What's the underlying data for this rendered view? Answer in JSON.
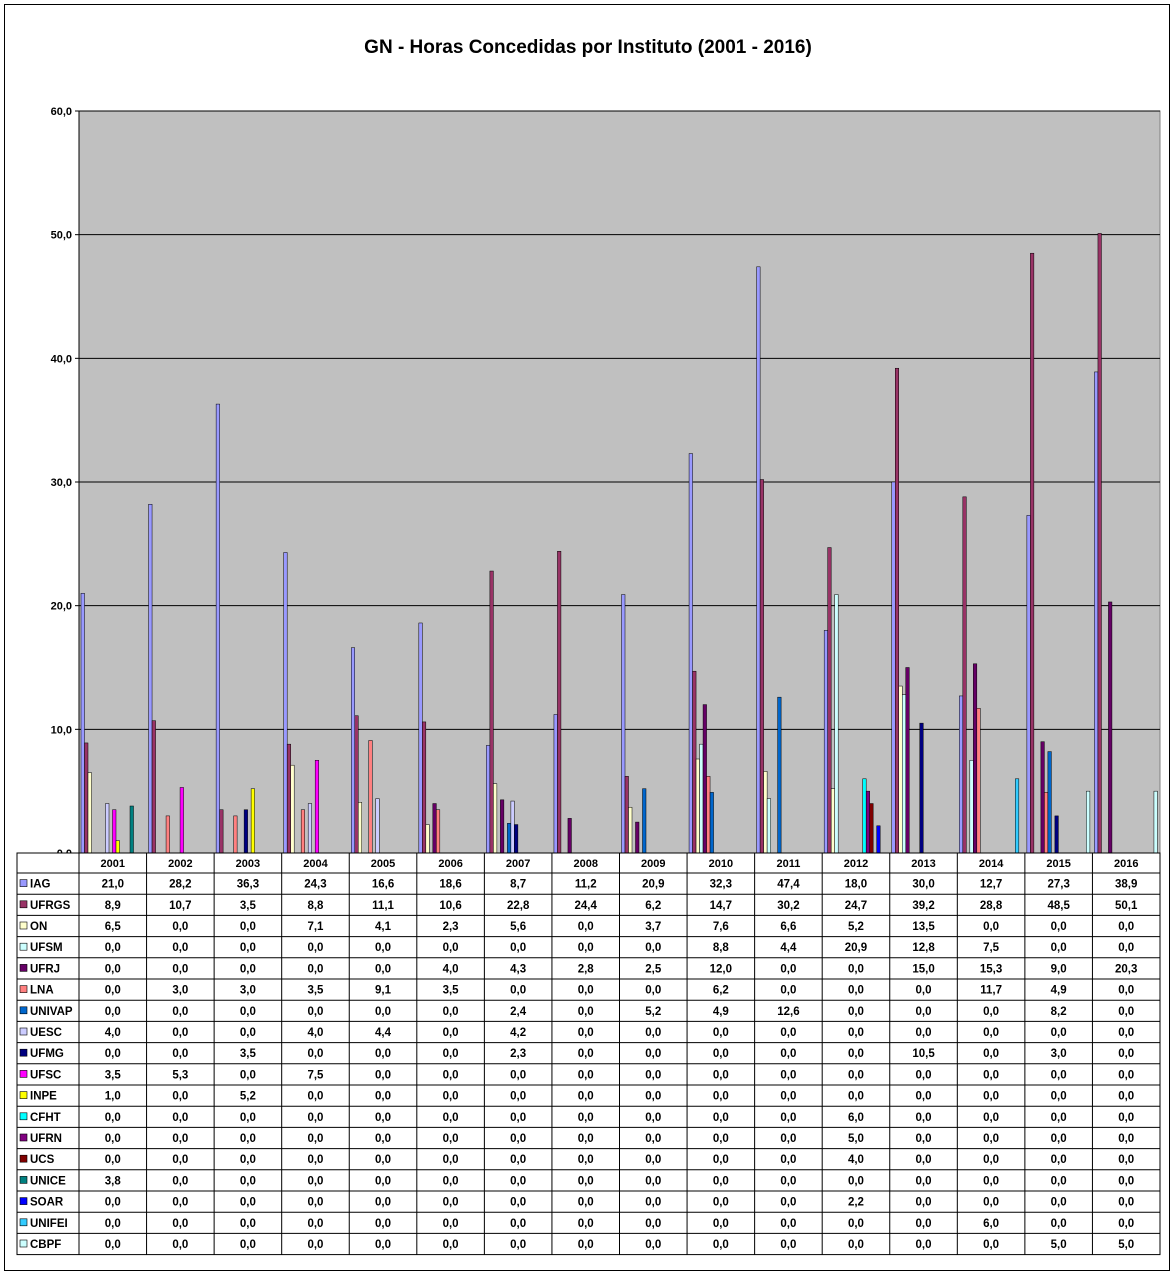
{
  "chart_data": {
    "type": "bar",
    "title": "GN - Horas Concedidas por Instituto (2001 - 2016)",
    "xlabel": "",
    "ylabel": "",
    "ylim": [
      0,
      60
    ],
    "y_ticks": [
      "0,0",
      "10,0",
      "20,0",
      "30,0",
      "40,0",
      "50,0",
      "60,0"
    ],
    "grid": true,
    "legend": "data-table-below",
    "plot_background": "#C0C0C0",
    "categories": [
      "2001",
      "2002",
      "2003",
      "2004",
      "2005",
      "2006",
      "2007",
      "2008",
      "2009",
      "2010",
      "2011",
      "2012",
      "2013",
      "2014",
      "2015",
      "2016"
    ],
    "series": [
      {
        "name": "IAG",
        "color": "#9999FF",
        "values": [
          21.0,
          28.2,
          36.3,
          24.3,
          16.6,
          18.6,
          8.7,
          11.2,
          20.9,
          32.3,
          47.4,
          18.0,
          30.0,
          12.7,
          27.3,
          38.9
        ],
        "labels": [
          "21,0",
          "28,2",
          "36,3",
          "24,3",
          "16,6",
          "18,6",
          "8,7",
          "11,2",
          "20,9",
          "32,3",
          "47,4",
          "18,0",
          "30,0",
          "12,7",
          "27,3",
          "38,9"
        ]
      },
      {
        "name": "UFRGS",
        "color": "#993366",
        "values": [
          8.9,
          10.7,
          3.5,
          8.8,
          11.1,
          10.6,
          22.8,
          24.4,
          6.2,
          14.7,
          30.2,
          24.7,
          39.2,
          28.8,
          48.5,
          50.1
        ],
        "labels": [
          "8,9",
          "10,7",
          "3,5",
          "8,8",
          "11,1",
          "10,6",
          "22,8",
          "24,4",
          "6,2",
          "14,7",
          "30,2",
          "24,7",
          "39,2",
          "28,8",
          "48,5",
          "50,1"
        ]
      },
      {
        "name": "ON",
        "color": "#FFFFCC",
        "values": [
          6.5,
          0.0,
          0.0,
          7.1,
          4.1,
          2.3,
          5.6,
          0.0,
          3.7,
          7.6,
          6.6,
          5.2,
          13.5,
          0.0,
          0.0,
          0.0
        ],
        "labels": [
          "6,5",
          "0,0",
          "0,0",
          "7,1",
          "4,1",
          "2,3",
          "5,6",
          "0,0",
          "3,7",
          "7,6",
          "6,6",
          "5,2",
          "13,5",
          "0,0",
          "0,0",
          "0,0"
        ]
      },
      {
        "name": "UFSM",
        "color": "#CCFFFF",
        "values": [
          0.0,
          0.0,
          0.0,
          0.0,
          0.0,
          0.0,
          0.0,
          0.0,
          0.0,
          8.8,
          4.4,
          20.9,
          12.8,
          7.5,
          0.0,
          0.0
        ],
        "labels": [
          "0,0",
          "0,0",
          "0,0",
          "0,0",
          "0,0",
          "0,0",
          "0,0",
          "0,0",
          "0,0",
          "8,8",
          "4,4",
          "20,9",
          "12,8",
          "7,5",
          "0,0",
          "0,0"
        ]
      },
      {
        "name": "UFRJ",
        "color": "#660066",
        "values": [
          0.0,
          0.0,
          0.0,
          0.0,
          0.0,
          4.0,
          4.3,
          2.8,
          2.5,
          12.0,
          0.0,
          0.0,
          15.0,
          15.3,
          9.0,
          20.3
        ],
        "labels": [
          "0,0",
          "0,0",
          "0,0",
          "0,0",
          "0,0",
          "4,0",
          "4,3",
          "2,8",
          "2,5",
          "12,0",
          "0,0",
          "0,0",
          "15,0",
          "15,3",
          "9,0",
          "20,3"
        ]
      },
      {
        "name": "LNA",
        "color": "#FF8080",
        "values": [
          0.0,
          3.0,
          3.0,
          3.5,
          9.1,
          3.5,
          0.0,
          0.0,
          0.0,
          6.2,
          0.0,
          0.0,
          0.0,
          11.7,
          4.9,
          0.0
        ],
        "labels": [
          "0,0",
          "3,0",
          "3,0",
          "3,5",
          "9,1",
          "3,5",
          "0,0",
          "0,0",
          "0,0",
          "6,2",
          "0,0",
          "0,0",
          "0,0",
          "11,7",
          "4,9",
          "0,0"
        ]
      },
      {
        "name": "UNIVAP",
        "color": "#0066CC",
        "values": [
          0.0,
          0.0,
          0.0,
          0.0,
          0.0,
          0.0,
          2.4,
          0.0,
          5.2,
          4.9,
          12.6,
          0.0,
          0.0,
          0.0,
          8.2,
          0.0
        ],
        "labels": [
          "0,0",
          "0,0",
          "0,0",
          "0,0",
          "0,0",
          "0,0",
          "2,4",
          "0,0",
          "5,2",
          "4,9",
          "12,6",
          "0,0",
          "0,0",
          "0,0",
          "8,2",
          "0,0"
        ]
      },
      {
        "name": "UESC",
        "color": "#CCCCFF",
        "values": [
          4.0,
          0.0,
          0.0,
          4.0,
          4.4,
          0.0,
          4.2,
          0.0,
          0.0,
          0.0,
          0.0,
          0.0,
          0.0,
          0.0,
          0.0,
          0.0
        ],
        "labels": [
          "4,0",
          "0,0",
          "0,0",
          "4,0",
          "4,4",
          "0,0",
          "4,2",
          "0,0",
          "0,0",
          "0,0",
          "0,0",
          "0,0",
          "0,0",
          "0,0",
          "0,0",
          "0,0"
        ]
      },
      {
        "name": "UFMG",
        "color": "#000080",
        "values": [
          0.0,
          0.0,
          3.5,
          0.0,
          0.0,
          0.0,
          2.3,
          0.0,
          0.0,
          0.0,
          0.0,
          0.0,
          10.5,
          0.0,
          3.0,
          0.0
        ],
        "labels": [
          "0,0",
          "0,0",
          "3,5",
          "0,0",
          "0,0",
          "0,0",
          "2,3",
          "0,0",
          "0,0",
          "0,0",
          "0,0",
          "0,0",
          "10,5",
          "0,0",
          "3,0",
          "0,0"
        ]
      },
      {
        "name": "UFSC",
        "color": "#FF00FF",
        "values": [
          3.5,
          5.3,
          0.0,
          7.5,
          0.0,
          0.0,
          0.0,
          0.0,
          0.0,
          0.0,
          0.0,
          0.0,
          0.0,
          0.0,
          0.0,
          0.0
        ],
        "labels": [
          "3,5",
          "5,3",
          "0,0",
          "7,5",
          "0,0",
          "0,0",
          "0,0",
          "0,0",
          "0,0",
          "0,0",
          "0,0",
          "0,0",
          "0,0",
          "0,0",
          "0,0",
          "0,0"
        ]
      },
      {
        "name": "INPE",
        "color": "#FFFF00",
        "values": [
          1.0,
          0.0,
          5.2,
          0.0,
          0.0,
          0.0,
          0.0,
          0.0,
          0.0,
          0.0,
          0.0,
          0.0,
          0.0,
          0.0,
          0.0,
          0.0
        ],
        "labels": [
          "1,0",
          "0,0",
          "5,2",
          "0,0",
          "0,0",
          "0,0",
          "0,0",
          "0,0",
          "0,0",
          "0,0",
          "0,0",
          "0,0",
          "0,0",
          "0,0",
          "0,0",
          "0,0"
        ]
      },
      {
        "name": "CFHT",
        "color": "#00FFFF",
        "values": [
          0.0,
          0.0,
          0.0,
          0.0,
          0.0,
          0.0,
          0.0,
          0.0,
          0.0,
          0.0,
          0.0,
          6.0,
          0.0,
          0.0,
          0.0,
          0.0
        ],
        "labels": [
          "0,0",
          "0,0",
          "0,0",
          "0,0",
          "0,0",
          "0,0",
          "0,0",
          "0,0",
          "0,0",
          "0,0",
          "0,0",
          "6,0",
          "0,0",
          "0,0",
          "0,0",
          "0,0"
        ]
      },
      {
        "name": "UFRN",
        "color": "#800080",
        "values": [
          0.0,
          0.0,
          0.0,
          0.0,
          0.0,
          0.0,
          0.0,
          0.0,
          0.0,
          0.0,
          0.0,
          5.0,
          0.0,
          0.0,
          0.0,
          0.0
        ],
        "labels": [
          "0,0",
          "0,0",
          "0,0",
          "0,0",
          "0,0",
          "0,0",
          "0,0",
          "0,0",
          "0,0",
          "0,0",
          "0,0",
          "5,0",
          "0,0",
          "0,0",
          "0,0",
          "0,0"
        ]
      },
      {
        "name": "UCS",
        "color": "#800000",
        "values": [
          0.0,
          0.0,
          0.0,
          0.0,
          0.0,
          0.0,
          0.0,
          0.0,
          0.0,
          0.0,
          0.0,
          4.0,
          0.0,
          0.0,
          0.0,
          0.0
        ],
        "labels": [
          "0,0",
          "0,0",
          "0,0",
          "0,0",
          "0,0",
          "0,0",
          "0,0",
          "0,0",
          "0,0",
          "0,0",
          "0,0",
          "4,0",
          "0,0",
          "0,0",
          "0,0",
          "0,0"
        ]
      },
      {
        "name": "UNICE",
        "color": "#008080",
        "values": [
          3.8,
          0.0,
          0.0,
          0.0,
          0.0,
          0.0,
          0.0,
          0.0,
          0.0,
          0.0,
          0.0,
          0.0,
          0.0,
          0.0,
          0.0,
          0.0
        ],
        "labels": [
          "3,8",
          "0,0",
          "0,0",
          "0,0",
          "0,0",
          "0,0",
          "0,0",
          "0,0",
          "0,0",
          "0,0",
          "0,0",
          "0,0",
          "0,0",
          "0,0",
          "0,0",
          "0,0"
        ]
      },
      {
        "name": "SOAR",
        "color": "#0000FF",
        "values": [
          0.0,
          0.0,
          0.0,
          0.0,
          0.0,
          0.0,
          0.0,
          0.0,
          0.0,
          0.0,
          0.0,
          2.2,
          0.0,
          0.0,
          0.0,
          0.0
        ],
        "labels": [
          "0,0",
          "0,0",
          "0,0",
          "0,0",
          "0,0",
          "0,0",
          "0,0",
          "0,0",
          "0,0",
          "0,0",
          "0,0",
          "2,2",
          "0,0",
          "0,0",
          "0,0",
          "0,0"
        ]
      },
      {
        "name": "UNIFEI",
        "color": "#33CCFF",
        "values": [
          0.0,
          0.0,
          0.0,
          0.0,
          0.0,
          0.0,
          0.0,
          0.0,
          0.0,
          0.0,
          0.0,
          0.0,
          0.0,
          6.0,
          0.0,
          0.0
        ],
        "labels": [
          "0,0",
          "0,0",
          "0,0",
          "0,0",
          "0,0",
          "0,0",
          "0,0",
          "0,0",
          "0,0",
          "0,0",
          "0,0",
          "0,0",
          "0,0",
          "6,0",
          "0,0",
          "0,0"
        ]
      },
      {
        "name": "CBPF",
        "color": "#CCFFFF",
        "values": [
          0.0,
          0.0,
          0.0,
          0.0,
          0.0,
          0.0,
          0.0,
          0.0,
          0.0,
          0.0,
          0.0,
          0.0,
          0.0,
          0.0,
          5.0,
          5.0
        ],
        "labels": [
          "0,0",
          "0,0",
          "0,0",
          "0,0",
          "0,0",
          "0,0",
          "0,0",
          "0,0",
          "0,0",
          "0,0",
          "0,0",
          "0,0",
          "0,0",
          "0,0",
          "5,0",
          "5,0"
        ]
      }
    ]
  }
}
